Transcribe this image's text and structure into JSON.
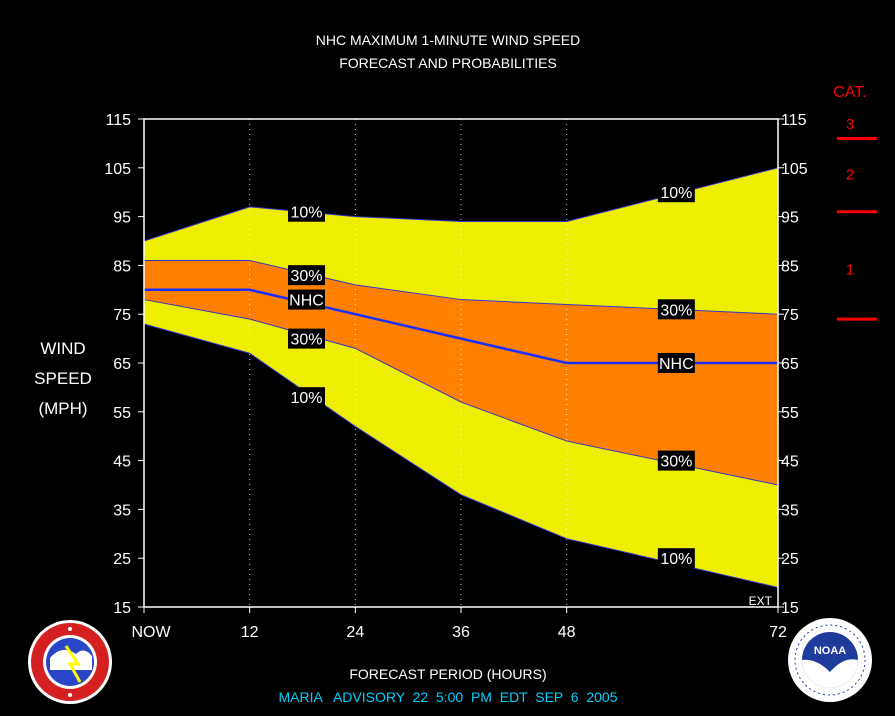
{
  "title_line1": "NHC MAXIMUM 1-MINUTE WIND SPEED",
  "title_line2": "FORECAST AND PROBABILITIES",
  "ylabel_lines": [
    "WIND",
    "SPEED",
    "(MPH)"
  ],
  "xlabel": "FORECAST PERIOD (HOURS)",
  "advisory": "MARIA   ADVISORY  22  5:00  PM  EDT  SEP  6  2005",
  "ext_label": "EXT",
  "category": {
    "header": "CAT.",
    "labels": [
      "3",
      "2",
      "1"
    ],
    "thresholds_mph": [
      111,
      96,
      74
    ],
    "color": "#ff0000"
  },
  "logos": [
    "nws-logo",
    "noaa-logo"
  ],
  "colors": {
    "band_10": "#eeee00",
    "band_30": "#ff8000",
    "nhc_line": "#1a2dff",
    "edge_line": "#3333cc",
    "background": "#000000",
    "category": "#ff0000"
  },
  "chart_data": {
    "type": "area",
    "title": "NHC MAXIMUM 1-MINUTE WIND SPEED FORECAST AND PROBABILITIES",
    "xlabel": "FORECAST PERIOD (HOURS)",
    "ylabel": "WIND SPEED (MPH)",
    "x": [
      0,
      12,
      24,
      36,
      48,
      72
    ],
    "x_tick_labels": [
      "NOW",
      "12",
      "24",
      "36",
      "48",
      "72"
    ],
    "xlim": [
      0,
      72
    ],
    "ylim": [
      15,
      115
    ],
    "y_ticks": [
      15,
      25,
      35,
      45,
      55,
      65,
      75,
      85,
      95,
      105,
      115
    ],
    "vertical_gridlines_at": [
      12,
      24,
      36,
      48
    ],
    "series": [
      {
        "name": "10%",
        "role": "upper",
        "values": [
          90,
          97,
          95,
          94,
          94,
          105
        ]
      },
      {
        "name": "30%",
        "role": "upper",
        "values": [
          86,
          86,
          81,
          78,
          77,
          75
        ]
      },
      {
        "name": "NHC",
        "role": "forecast",
        "values": [
          80,
          80,
          75,
          70,
          65,
          65
        ]
      },
      {
        "name": "30%",
        "role": "lower",
        "values": [
          78,
          74,
          68,
          57,
          49,
          40
        ]
      },
      {
        "name": "10%",
        "role": "lower",
        "values": [
          73,
          67,
          52,
          38,
          29,
          19
        ]
      }
    ],
    "annotations": [
      {
        "text": "10%",
        "x": 18,
        "y": 96
      },
      {
        "text": "30%",
        "x": 18,
        "y": 83
      },
      {
        "text": "NHC",
        "x": 18,
        "y": 78
      },
      {
        "text": "30%",
        "x": 18,
        "y": 70
      },
      {
        "text": "10%",
        "x": 18,
        "y": 58
      },
      {
        "text": "10%",
        "x": 60,
        "y": 100
      },
      {
        "text": "30%",
        "x": 60,
        "y": 76
      },
      {
        "text": "NHC",
        "x": 60,
        "y": 65
      },
      {
        "text": "30%",
        "x": 60,
        "y": 45
      },
      {
        "text": "10%",
        "x": 60,
        "y": 25
      }
    ]
  }
}
